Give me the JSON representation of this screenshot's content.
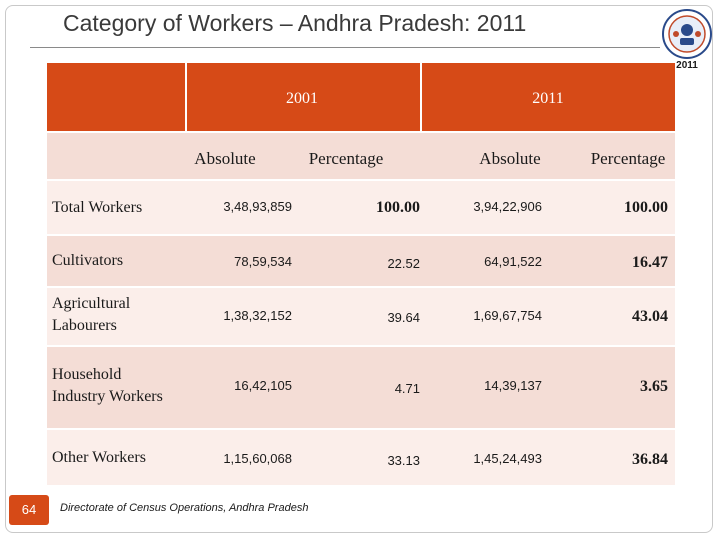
{
  "title": "Category of Workers – Andhra Pradesh: 2011",
  "logo": {
    "year": "2011"
  },
  "table": {
    "years": [
      "2001",
      "2011"
    ],
    "subheaders": [
      "Absolute",
      "Percentage",
      "Absolute",
      "Percentage"
    ],
    "rows": [
      {
        "label": [
          "Total Workers"
        ],
        "abs2001": "3,48,93,859",
        "pct2001": "100.00",
        "abs2011": "3,94,22,906",
        "pct2011": "100.00"
      },
      {
        "label": [
          "Cultivators"
        ],
        "abs2001": "78,59,534",
        "pct2001": "22.52",
        "abs2011": "64,91,522",
        "pct2011": "16.47"
      },
      {
        "label": [
          "Agricultural",
          "Labourers"
        ],
        "abs2001": "1,38,32,152",
        "pct2001": "39.64",
        "abs2011": "1,69,67,754",
        "pct2011": "43.04"
      },
      {
        "label": [
          "Household",
          "Industry Workers"
        ],
        "abs2001": "16,42,105",
        "pct2001": "4.71",
        "abs2011": "14,39,137",
        "pct2011": "3.65"
      },
      {
        "label": [
          "Other Workers"
        ],
        "abs2001": "1,15,60,068",
        "pct2001": "33.13",
        "abs2011": "1,45,24,493",
        "pct2011": "36.84"
      }
    ]
  },
  "footer": {
    "page_number": "64",
    "source": "Directorate of Census Operations, Andhra Pradesh"
  },
  "colors": {
    "header": "#d64a17",
    "band_dark": "#f4ddd6",
    "band_light": "#fbeeea"
  }
}
